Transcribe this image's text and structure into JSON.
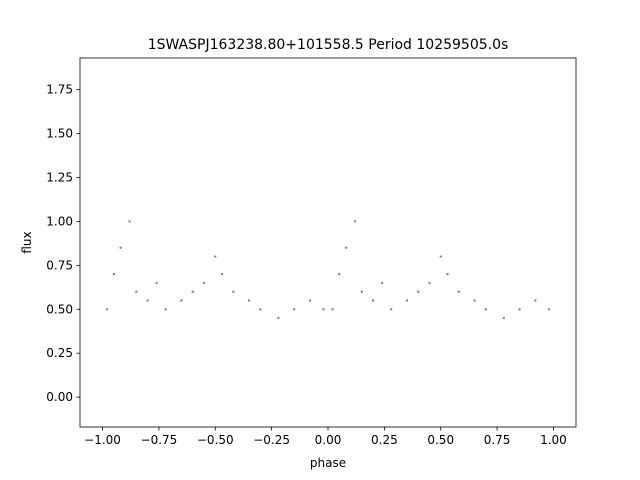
{
  "chart_data": {
    "type": "scatter",
    "title": "1SWASPJ163238.80+101558.5 Period 10259505.0s",
    "xlabel": "phase",
    "ylabel": "flux",
    "xlim": [
      -1.1,
      1.1
    ],
    "ylim": [
      -0.17,
      1.93
    ],
    "x_ticks": [
      -1.0,
      -0.75,
      -0.5,
      -0.25,
      0.0,
      0.25,
      0.5,
      0.75,
      1.0
    ],
    "x_tick_labels": [
      "−1.00",
      "−0.75",
      "−0.50",
      "−0.25",
      "0.00",
      "0.25",
      "0.50",
      "0.75",
      "1.00"
    ],
    "y_ticks": [
      0.0,
      0.25,
      0.5,
      0.75,
      1.0,
      1.25,
      1.5,
      1.75
    ],
    "y_tick_labels": [
      "0.00",
      "0.25",
      "0.50",
      "0.75",
      "1.00",
      "1.25",
      "1.50",
      "1.75"
    ],
    "grid": false,
    "legend": "none",
    "marker_color": "#1f77b4",
    "series_points_approx": [
      [
        -0.98,
        0.5
      ],
      [
        -0.95,
        0.7
      ],
      [
        -0.92,
        0.85
      ],
      [
        -0.88,
        1.0
      ],
      [
        -0.85,
        0.6
      ],
      [
        -0.8,
        0.55
      ],
      [
        -0.76,
        0.65
      ],
      [
        -0.72,
        0.5
      ],
      [
        -0.65,
        0.55
      ],
      [
        -0.6,
        0.6
      ],
      [
        -0.55,
        0.65
      ],
      [
        -0.5,
        0.8
      ],
      [
        -0.47,
        0.7
      ],
      [
        -0.42,
        0.6
      ],
      [
        -0.35,
        0.55
      ],
      [
        -0.3,
        0.5
      ],
      [
        -0.22,
        0.45
      ],
      [
        -0.15,
        0.5
      ],
      [
        -0.08,
        0.55
      ],
      [
        -0.02,
        0.5
      ],
      [
        0.02,
        0.5
      ],
      [
        0.05,
        0.7
      ],
      [
        0.08,
        0.85
      ],
      [
        0.12,
        1.0
      ],
      [
        0.15,
        0.6
      ],
      [
        0.2,
        0.55
      ],
      [
        0.24,
        0.65
      ],
      [
        0.28,
        0.5
      ],
      [
        0.35,
        0.55
      ],
      [
        0.4,
        0.6
      ],
      [
        0.45,
        0.65
      ],
      [
        0.5,
        0.8
      ],
      [
        0.53,
        0.7
      ],
      [
        0.58,
        0.6
      ],
      [
        0.65,
        0.55
      ],
      [
        0.7,
        0.5
      ],
      [
        0.78,
        0.45
      ],
      [
        0.85,
        0.5
      ],
      [
        0.92,
        0.55
      ],
      [
        0.98,
        0.5
      ]
    ]
  }
}
